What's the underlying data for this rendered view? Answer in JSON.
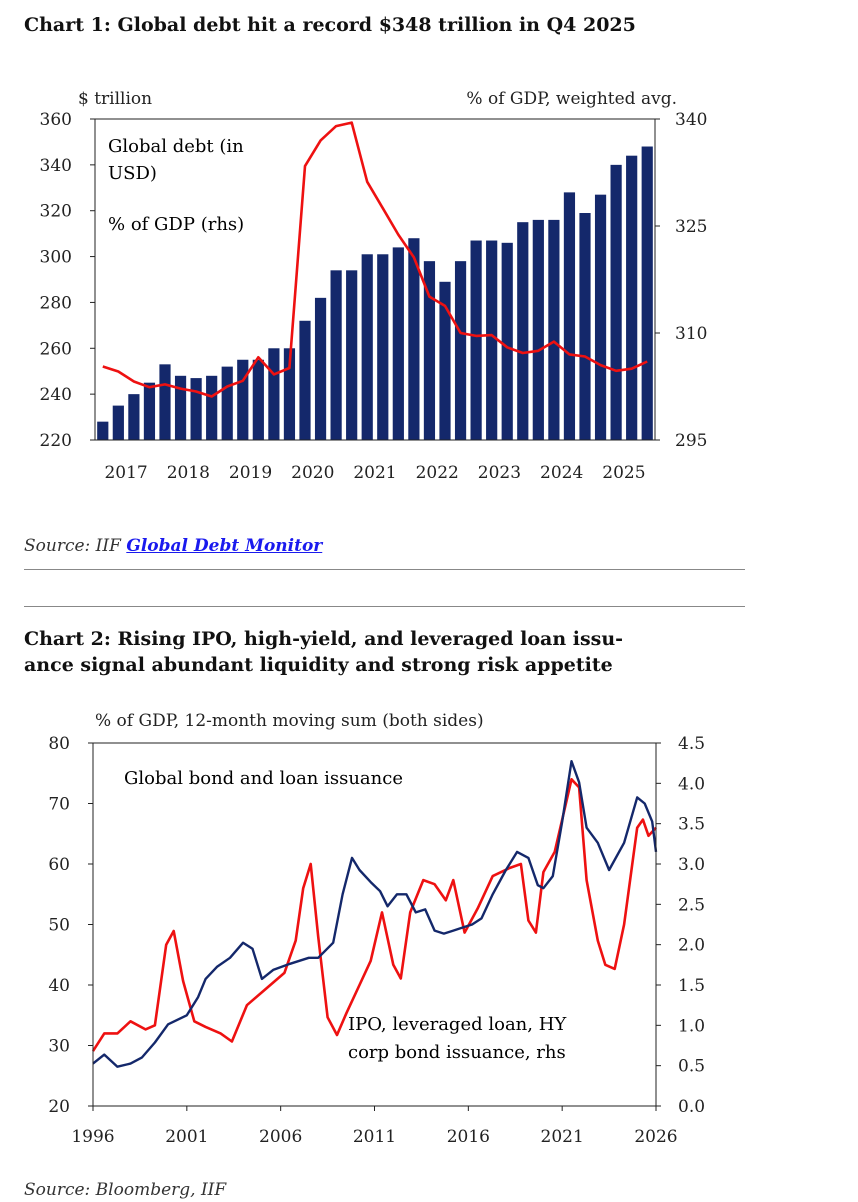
{
  "chart1_title": "Chart 1: Global debt hit a record $348 trillion in Q4 2025",
  "chart1_source_prefix": "Source: IIF ",
  "chart1_source_link": "Global Debt Monitor",
  "chart2_title_line1": "Chart 2: Rising IPO, high-yield, and leveraged loan issu-",
  "chart2_title_line2": "ance signal abundant liquidity and strong risk appetite",
  "chart2_source": "Source: Bloomberg, IIF",
  "colors": {
    "navy": "#14286b",
    "red": "#ee1111"
  },
  "chart_data": [
    {
      "type": "bar",
      "title": "Chart 1: Global debt hit a record $348 trillion in Q4 2025",
      "ylabel_left": "$ trillion",
      "ylabel_right": "% of GDP, weighted avg.",
      "ylim_left": [
        220,
        360
      ],
      "yticks_left": [
        "220",
        "240",
        "260",
        "280",
        "300",
        "320",
        "340",
        "360"
      ],
      "ylim_right": [
        295,
        340
      ],
      "yticks_right": [
        "295",
        "310",
        "325",
        "340"
      ],
      "xticks": [
        "2017",
        "2018",
        "2019",
        "2020",
        "2021",
        "2022",
        "2023",
        "2024",
        "2025"
      ],
      "series": [
        {
          "name": "Global debt (in USD)",
          "kind": "bar",
          "label_line1": "Global debt (in",
          "label_line2": "USD)",
          "values": [
            228,
            235,
            240,
            245,
            253,
            248,
            247,
            248,
            252,
            255,
            255,
            260,
            260,
            272,
            282,
            294,
            294,
            301,
            301,
            304,
            308,
            298,
            289,
            298,
            307,
            307,
            306,
            315,
            316,
            316,
            328,
            319,
            327,
            340,
            344,
            348
          ]
        },
        {
          "name": "% of GDP (rhs)",
          "kind": "line",
          "values": [
            305.3,
            304.6,
            303.2,
            302.4,
            302.8,
            302.2,
            301.8,
            301.1,
            302.5,
            303.3,
            306.6,
            304.2,
            305.1,
            333.4,
            337.0,
            339.0,
            339.5,
            331.2,
            327.5,
            323.8,
            320.6,
            315.1,
            313.8,
            310.0,
            309.6,
            309.7,
            308.0,
            307.2,
            307.5,
            308.8,
            307.0,
            306.7,
            305.5,
            304.7,
            305.0,
            306.0
          ]
        }
      ]
    },
    {
      "type": "line",
      "title": "Chart 2: Rising IPO, high-yield, and leveraged loan issuance signal abundant liquidity and strong risk appetite",
      "subtitle": "% of GDP, 12-month moving sum (both sides)",
      "ylim_left": [
        20,
        80
      ],
      "yticks_left": [
        "20",
        "30",
        "40",
        "50",
        "60",
        "70",
        "80"
      ],
      "ylim_right": [
        0,
        4.5
      ],
      "yticks_right": [
        "0.0",
        "0.5",
        "1.0",
        "1.5",
        "2.0",
        "2.5",
        "3.0",
        "3.5",
        "4.0",
        "4.5"
      ],
      "xlim": [
        1996,
        2026
      ],
      "xticks": [
        "1996",
        "2001",
        "2006",
        "2011",
        "2016",
        "2021",
        "2026"
      ],
      "series": [
        {
          "name": "Global bond and loan issuance",
          "axis": "left",
          "points": [
            [
              1996.0,
              27
            ],
            [
              1996.6,
              28.5
            ],
            [
              1997.3,
              26.5
            ],
            [
              1998.0,
              27
            ],
            [
              1998.6,
              28
            ],
            [
              1999.3,
              30.5
            ],
            [
              2000.0,
              33.5
            ],
            [
              2001.0,
              35
            ],
            [
              2001.6,
              38
            ],
            [
              2002.0,
              41
            ],
            [
              2002.6,
              43
            ],
            [
              2003.3,
              44.5
            ],
            [
              2004.0,
              47
            ],
            [
              2004.5,
              46
            ],
            [
              2005.0,
              41
            ],
            [
              2005.6,
              42.5
            ],
            [
              2006.5,
              43.5
            ],
            [
              2007.5,
              44.5
            ],
            [
              2008.0,
              44.5
            ],
            [
              2008.8,
              47
            ],
            [
              2009.3,
              55
            ],
            [
              2009.8,
              61
            ],
            [
              2010.2,
              59
            ],
            [
              2010.8,
              57
            ],
            [
              2011.3,
              55.5
            ],
            [
              2011.7,
              53
            ],
            [
              2012.2,
              55
            ],
            [
              2012.7,
              55
            ],
            [
              2013.2,
              52
            ],
            [
              2013.7,
              52.5
            ],
            [
              2014.2,
              49
            ],
            [
              2014.7,
              48.5
            ],
            [
              2015.2,
              49
            ],
            [
              2015.7,
              49.5
            ],
            [
              2016.2,
              50
            ],
            [
              2016.7,
              51
            ],
            [
              2017.3,
              55
            ],
            [
              2018.0,
              59
            ],
            [
              2018.6,
              62
            ],
            [
              2019.2,
              61
            ],
            [
              2019.7,
              56.5
            ],
            [
              2020.0,
              56
            ],
            [
              2020.5,
              58
            ],
            [
              2021.0,
              67
            ],
            [
              2021.5,
              77
            ],
            [
              2021.9,
              73.5
            ],
            [
              2022.3,
              66
            ],
            [
              2022.9,
              63.5
            ],
            [
              2023.5,
              59
            ],
            [
              2024.3,
              63.5
            ],
            [
              2025.0,
              71
            ],
            [
              2025.4,
              70
            ],
            [
              2025.8,
              67
            ],
            [
              2026.0,
              62
            ]
          ]
        },
        {
          "name": "IPO, leveraged loan, HY corp bond issuance, rhs",
          "axis": "right",
          "label_line1": "IPO, leveraged loan, HY",
          "label_line2": "corp bond issuance, rhs",
          "points": [
            [
              1996.0,
              0.68
            ],
            [
              1996.6,
              0.9
            ],
            [
              1997.3,
              0.9
            ],
            [
              1998.0,
              1.05
            ],
            [
              1998.8,
              0.95
            ],
            [
              1999.3,
              1.0
            ],
            [
              1999.9,
              2.0
            ],
            [
              2000.3,
              2.17
            ],
            [
              2000.8,
              1.55
            ],
            [
              2001.4,
              1.05
            ],
            [
              2002.0,
              0.98
            ],
            [
              2002.8,
              0.9
            ],
            [
              2003.4,
              0.8
            ],
            [
              2004.2,
              1.25
            ],
            [
              2005.2,
              1.45
            ],
            [
              2006.2,
              1.65
            ],
            [
              2006.8,
              2.05
            ],
            [
              2007.2,
              2.7
            ],
            [
              2007.6,
              3.0
            ],
            [
              2008.0,
              2.1
            ],
            [
              2008.5,
              1.1
            ],
            [
              2009.0,
              0.88
            ],
            [
              2009.5,
              1.15
            ],
            [
              2010.2,
              1.5
            ],
            [
              2010.8,
              1.8
            ],
            [
              2011.4,
              2.4
            ],
            [
              2012.0,
              1.75
            ],
            [
              2012.4,
              1.58
            ],
            [
              2012.9,
              2.4
            ],
            [
              2013.6,
              2.8
            ],
            [
              2014.2,
              2.75
            ],
            [
              2014.8,
              2.55
            ],
            [
              2015.2,
              2.8
            ],
            [
              2015.8,
              2.15
            ],
            [
              2016.5,
              2.45
            ],
            [
              2017.3,
              2.85
            ],
            [
              2018.2,
              2.95
            ],
            [
              2018.8,
              3.0
            ],
            [
              2019.2,
              2.3
            ],
            [
              2019.6,
              2.15
            ],
            [
              2020.0,
              2.9
            ],
            [
              2020.6,
              3.15
            ],
            [
              2021.0,
              3.55
            ],
            [
              2021.5,
              4.05
            ],
            [
              2021.9,
              3.95
            ],
            [
              2022.3,
              2.8
            ],
            [
              2022.9,
              2.05
            ],
            [
              2023.3,
              1.75
            ],
            [
              2023.8,
              1.7
            ],
            [
              2024.3,
              2.25
            ],
            [
              2025.0,
              3.45
            ],
            [
              2025.3,
              3.55
            ],
            [
              2025.6,
              3.35
            ],
            [
              2026.0,
              3.45
            ]
          ]
        }
      ]
    }
  ]
}
